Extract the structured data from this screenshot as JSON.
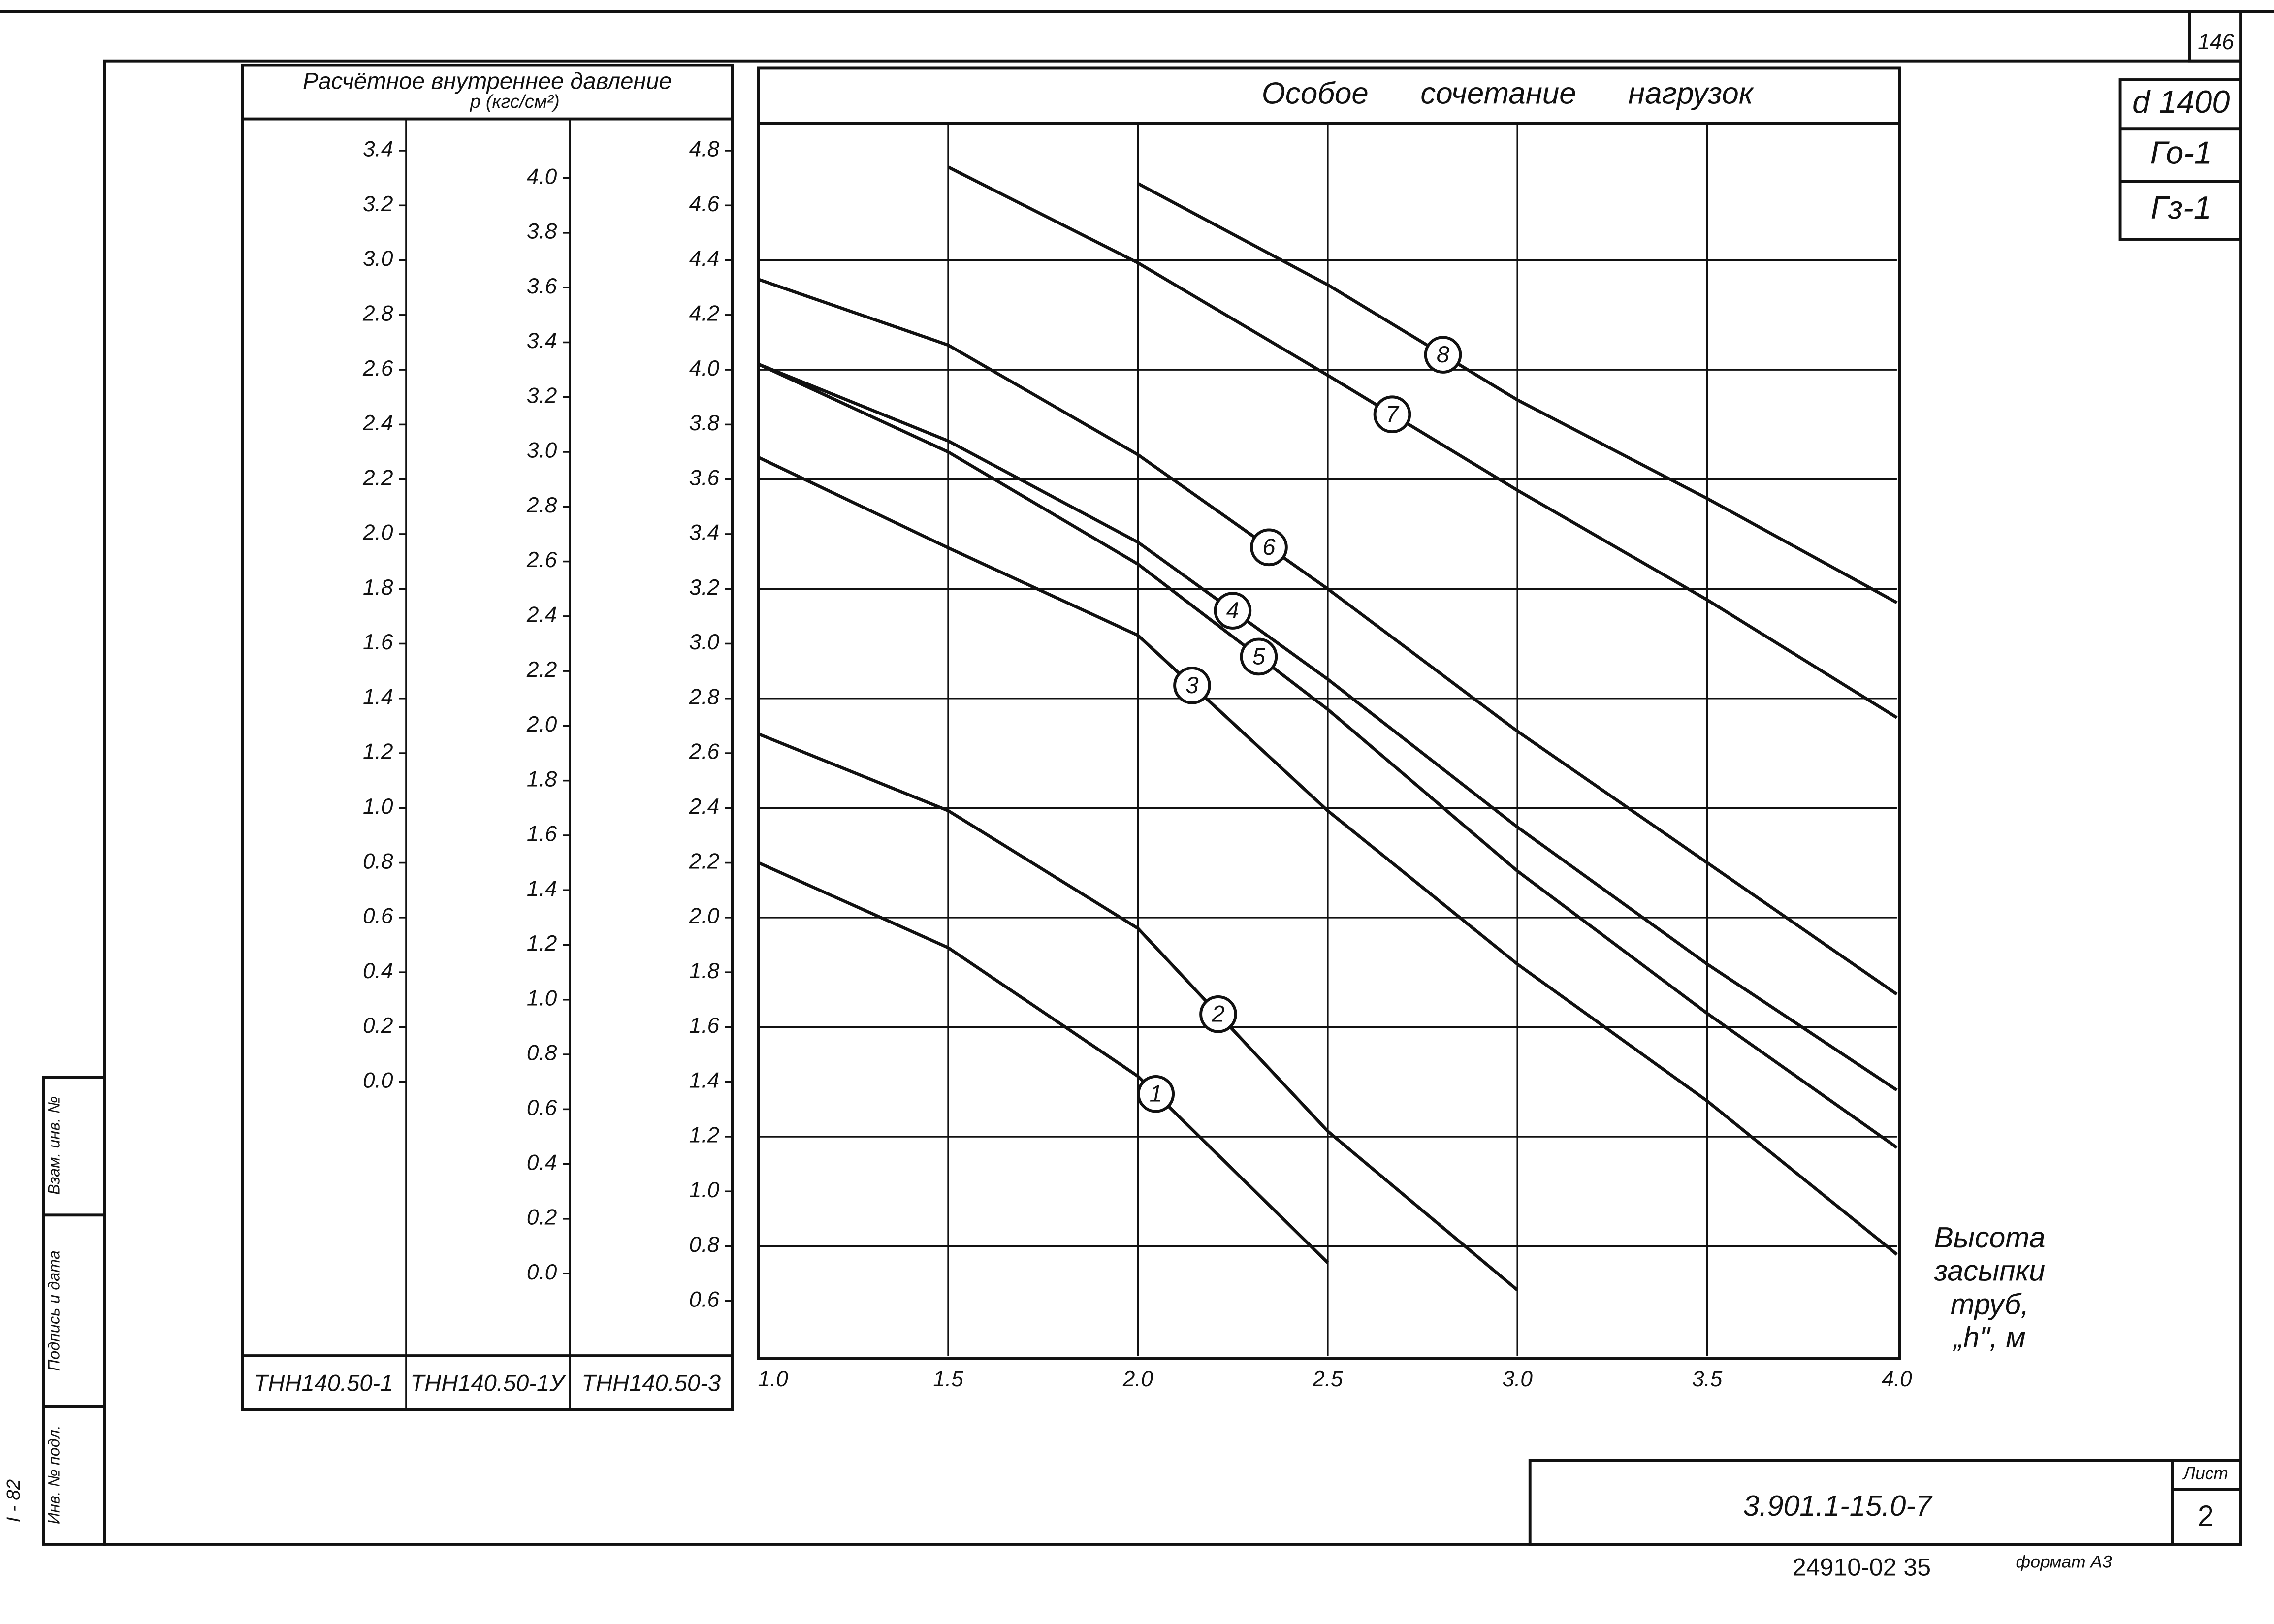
{
  "sheet_number": "146",
  "side_stamps": {
    "replacement": "Взам. инв. №",
    "signature": "Подпись и дата",
    "inventory": "Инв. № подл.",
    "code": "I - 82"
  },
  "tags": [
    "d 1400",
    "Го-1",
    "Гз-1"
  ],
  "stamp": {
    "designation": "3.901.1-15.0-7",
    "sheet_label": "Лист",
    "sheet": "2"
  },
  "footer": {
    "number": "24910-02 35",
    "format": "формат А3"
  },
  "chart_data": {
    "type": "line",
    "title": "Особое сочетание нагрузок",
    "y_title": "Расчётное внутреннее давление",
    "y_unit": "р (кгс/см²)",
    "x_label": [
      "Высота",
      "засыпки",
      "труб,",
      "„h\", м"
    ],
    "color": "#111111",
    "grid": true,
    "x": [
      1.0,
      1.5,
      2.0,
      2.5,
      3.0,
      3.5,
      4.0
    ],
    "xlim": [
      1,
      4
    ],
    "xticks": [
      {
        "value": 1,
        "label": "1.0"
      },
      1.5,
      {
        "value": 2,
        "label": "2.0"
      },
      2.5,
      {
        "value": 3,
        "label": "3.0"
      },
      3.5,
      {
        "value": 4,
        "label": "4.0"
      }
    ],
    "ylim": [
      0.4,
      4.9
    ],
    "y_scale_name": "ТНН140.50-3",
    "yticks": [
      4.8,
      4.6,
      4.4,
      4.2,
      {
        "value": 4,
        "label": "4.0"
      },
      3.8,
      3.6,
      3.4,
      3.2,
      {
        "value": 3,
        "label": "3.0"
      },
      2.8,
      2.6,
      2.4,
      2.2,
      {
        "value": 2,
        "label": "2.0"
      },
      1.8,
      1.6,
      1.4,
      1.2,
      {
        "value": 1,
        "label": "1.0"
      },
      0.8,
      0.6
    ],
    "scales": [
      {
        "name": "ТНН140.50-1",
        "ylim": [
          -1.0,
          3.5
        ],
        "ticks": [
          3.4,
          3.2,
          {
            "value": 3,
            "label": "3.0"
          },
          2.8,
          2.6,
          2.4,
          2.2,
          {
            "value": 2,
            "label": "2.0"
          },
          1.8,
          1.6,
          1.4,
          1.2,
          {
            "value": 1,
            "label": "1.0"
          },
          0.8,
          0.6,
          0.4,
          0.2,
          {
            "value": 0,
            "label": "0.0"
          }
        ]
      },
      {
        "name": "ТНН140.50-1У",
        "ylim": [
          -0.3,
          4.2
        ],
        "ticks": [
          {
            "value": 4,
            "label": "4.0"
          },
          3.8,
          3.6,
          3.4,
          3.2,
          {
            "value": 3,
            "label": "3.0"
          },
          2.8,
          2.6,
          2.4,
          2.2,
          {
            "value": 2,
            "label": "2.0"
          },
          1.8,
          1.6,
          1.4,
          1.2,
          {
            "value": 1,
            "label": "1.0"
          },
          0.8,
          0.6,
          0.4,
          0.2,
          {
            "value": 0,
            "label": "0.0"
          }
        ]
      }
    ],
    "series": [
      {
        "name": "1",
        "values": [
          2.2,
          1.89,
          1.42,
          0.74,
          null,
          null,
          null
        ]
      },
      {
        "name": "2",
        "values": [
          2.67,
          2.39,
          1.96,
          1.22,
          0.64,
          null,
          null
        ]
      },
      {
        "name": "3",
        "values": [
          3.68,
          3.35,
          3.03,
          2.39,
          1.83,
          1.33,
          0.77
        ]
      },
      {
        "name": "4",
        "values": [
          4.02,
          3.74,
          3.37,
          2.87,
          2.33,
          1.83,
          1.37
        ]
      },
      {
        "name": "5",
        "values": [
          4.02,
          3.7,
          3.29,
          2.76,
          2.17,
          1.65,
          1.16
        ]
      },
      {
        "name": "6",
        "values": [
          4.33,
          4.09,
          3.69,
          3.2,
          2.68,
          2.2,
          1.72
        ]
      },
      {
        "name": "7",
        "values": [
          null,
          4.74,
          4.39,
          3.98,
          3.56,
          3.16,
          2.73
        ]
      },
      {
        "name": "8",
        "values": [
          null,
          null,
          4.68,
          4.31,
          3.89,
          3.53,
          3.15
        ]
      }
    ]
  }
}
